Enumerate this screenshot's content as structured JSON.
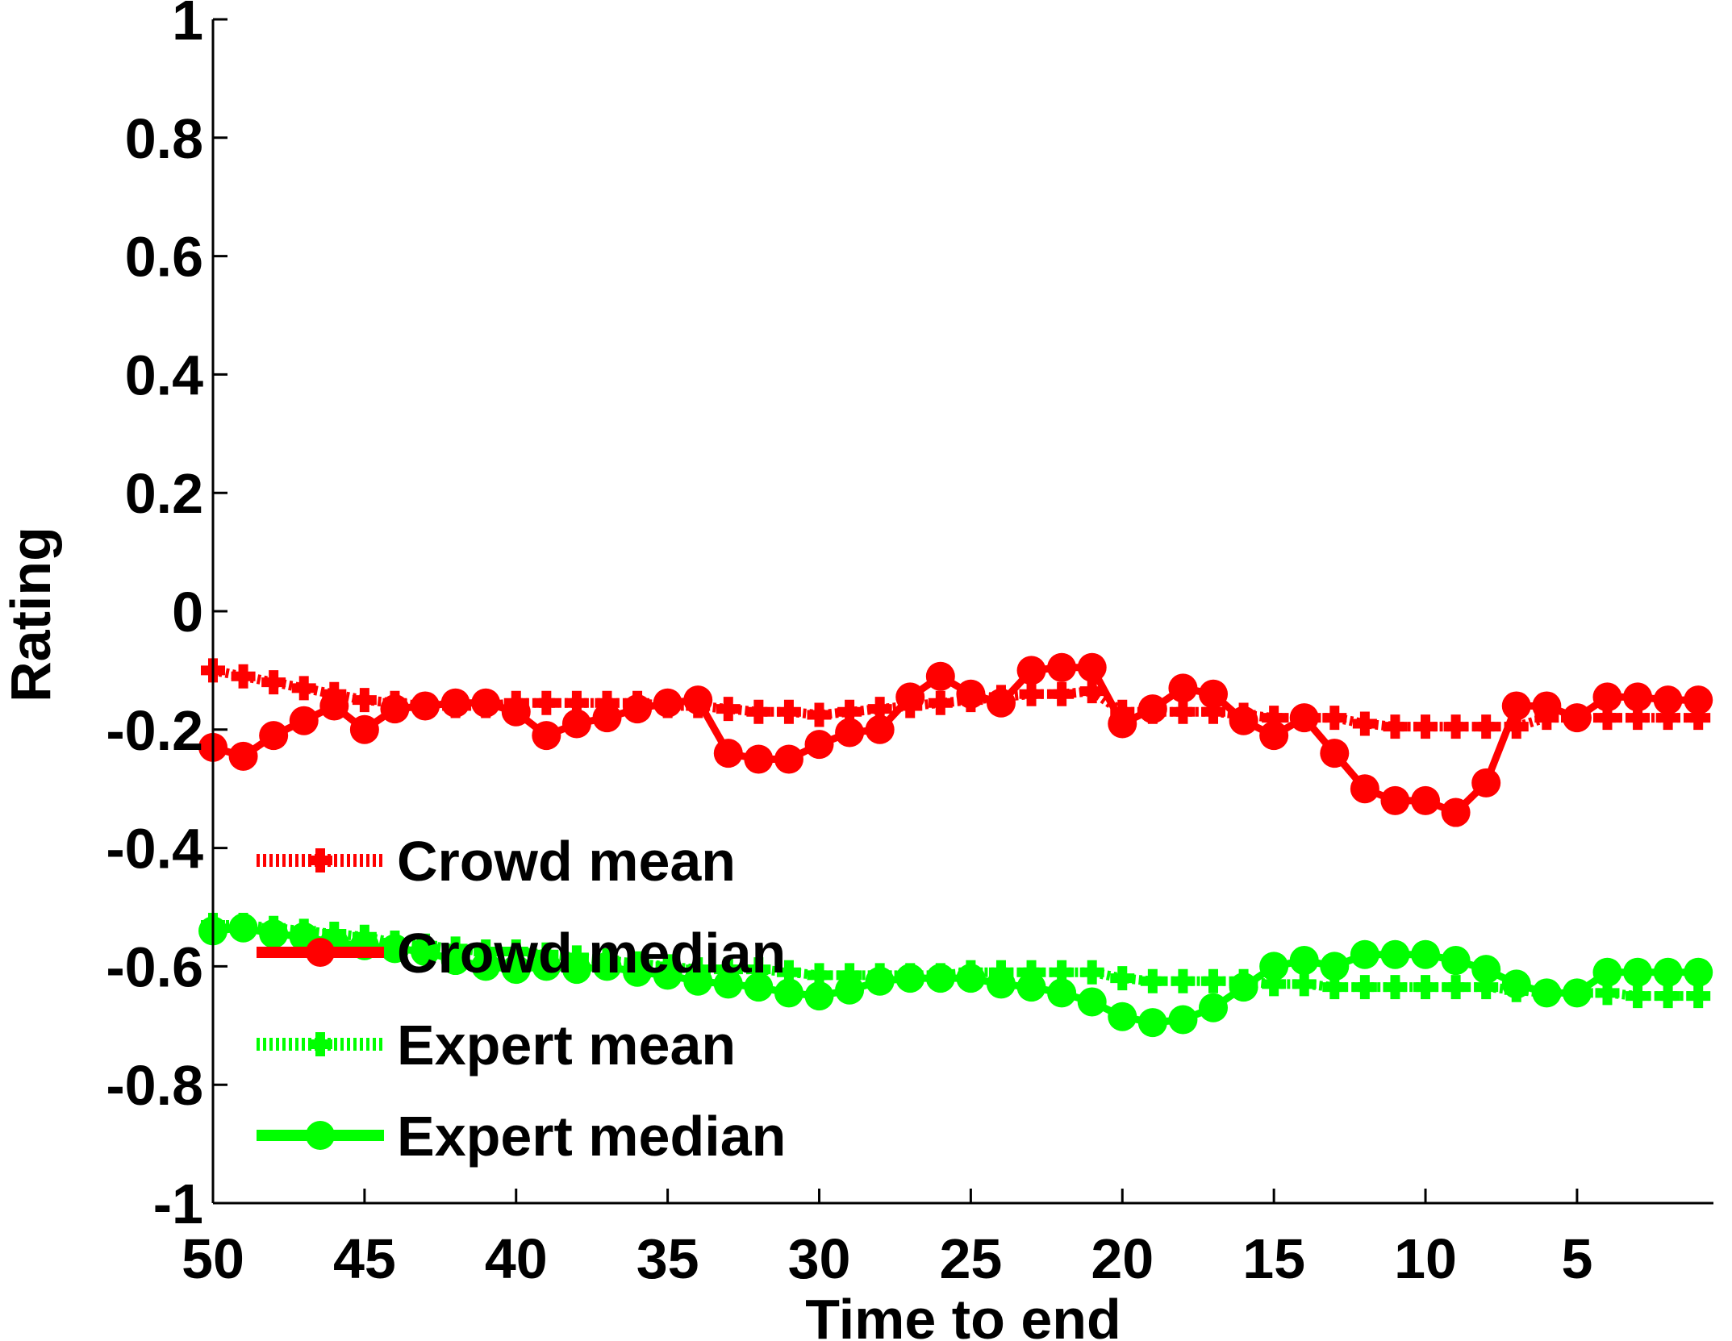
{
  "chart_data": {
    "type": "line",
    "title": "",
    "xlabel": "Time to end",
    "ylabel": "Rating",
    "xlim": [
      50,
      0.5
    ],
    "ylim": [
      -1,
      1
    ],
    "x_reversed": true,
    "xticks": [
      50,
      45,
      40,
      35,
      30,
      25,
      20,
      15,
      10,
      5
    ],
    "xtick_labels": [
      "50",
      "45",
      "40",
      "35",
      "30",
      "25",
      "20",
      "15",
      "10",
      "5"
    ],
    "yticks": [
      1,
      0.8,
      0.6,
      0.4,
      0.2,
      0,
      -0.2,
      -0.4,
      -0.6,
      -0.8,
      -1
    ],
    "ytick_labels": [
      "1",
      "0.8",
      "0.6",
      "0.4",
      "0.2",
      "0",
      "-0.2",
      "-0.4",
      "-0.6",
      "-0.8",
      "-1"
    ],
    "grid": false,
    "legend_position": "bottom-left",
    "x": [
      50,
      49,
      48,
      47,
      46,
      45,
      44,
      43,
      42,
      41,
      40,
      39,
      38,
      37,
      36,
      35,
      34,
      33,
      32,
      31,
      30,
      29,
      28,
      27,
      26,
      25,
      24,
      23,
      22,
      21,
      20,
      19,
      18,
      17,
      16,
      15,
      14,
      13,
      12,
      11,
      10,
      9,
      8,
      7,
      6,
      5,
      4,
      3,
      2,
      1
    ],
    "series": [
      {
        "name": "Crowd mean",
        "color": "#ff0000",
        "linestyle": "dotted",
        "marker": "plus",
        "values": [
          -0.1,
          -0.11,
          -0.12,
          -0.13,
          -0.14,
          -0.15,
          -0.155,
          -0.16,
          -0.16,
          -0.16,
          -0.155,
          -0.155,
          -0.155,
          -0.155,
          -0.155,
          -0.16,
          -0.16,
          -0.165,
          -0.17,
          -0.17,
          -0.175,
          -0.17,
          -0.165,
          -0.16,
          -0.155,
          -0.15,
          -0.145,
          -0.14,
          -0.14,
          -0.135,
          -0.17,
          -0.17,
          -0.17,
          -0.17,
          -0.175,
          -0.18,
          -0.18,
          -0.18,
          -0.19,
          -0.195,
          -0.195,
          -0.195,
          -0.195,
          -0.195,
          -0.18,
          -0.18,
          -0.18,
          -0.18,
          -0.18,
          -0.18
        ]
      },
      {
        "name": "Crowd median",
        "color": "#ff0000",
        "linestyle": "solid",
        "marker": "circle",
        "values": [
          -0.23,
          -0.245,
          -0.21,
          -0.185,
          -0.16,
          -0.2,
          -0.165,
          -0.16,
          -0.155,
          -0.155,
          -0.17,
          -0.21,
          -0.19,
          -0.18,
          -0.165,
          -0.155,
          -0.15,
          -0.24,
          -0.25,
          -0.25,
          -0.225,
          -0.205,
          -0.2,
          -0.145,
          -0.11,
          -0.14,
          -0.155,
          -0.1,
          -0.095,
          -0.095,
          -0.19,
          -0.165,
          -0.13,
          -0.14,
          -0.185,
          -0.21,
          -0.18,
          -0.24,
          -0.3,
          -0.32,
          -0.32,
          -0.34,
          -0.29,
          -0.16,
          -0.16,
          -0.18,
          -0.145,
          -0.145,
          -0.15,
          -0.15
        ]
      },
      {
        "name": "Expert mean",
        "color": "#00ff00",
        "linestyle": "dotted",
        "marker": "plus",
        "values": [
          -0.53,
          -0.53,
          -0.535,
          -0.54,
          -0.545,
          -0.55,
          -0.56,
          -0.565,
          -0.57,
          -0.575,
          -0.575,
          -0.58,
          -0.585,
          -0.59,
          -0.595,
          -0.6,
          -0.605,
          -0.605,
          -0.605,
          -0.61,
          -0.615,
          -0.615,
          -0.615,
          -0.615,
          -0.615,
          -0.61,
          -0.61,
          -0.61,
          -0.61,
          -0.61,
          -0.62,
          -0.625,
          -0.625,
          -0.625,
          -0.625,
          -0.63,
          -0.63,
          -0.635,
          -0.635,
          -0.635,
          -0.635,
          -0.635,
          -0.635,
          -0.64,
          -0.645,
          -0.645,
          -0.645,
          -0.65,
          -0.65,
          -0.65
        ]
      },
      {
        "name": "Expert median",
        "color": "#00ff00",
        "linestyle": "solid",
        "marker": "circle",
        "values": [
          -0.54,
          -0.535,
          -0.545,
          -0.55,
          -0.56,
          -0.565,
          -0.57,
          -0.575,
          -0.59,
          -0.6,
          -0.605,
          -0.6,
          -0.605,
          -0.6,
          -0.61,
          -0.615,
          -0.625,
          -0.63,
          -0.635,
          -0.645,
          -0.65,
          -0.64,
          -0.625,
          -0.62,
          -0.62,
          -0.62,
          -0.63,
          -0.635,
          -0.645,
          -0.66,
          -0.685,
          -0.695,
          -0.69,
          -0.67,
          -0.635,
          -0.6,
          -0.59,
          -0.6,
          -0.58,
          -0.58,
          -0.58,
          -0.59,
          -0.605,
          -0.63,
          -0.645,
          -0.645,
          -0.61,
          -0.61,
          -0.61,
          -0.61
        ]
      }
    ]
  }
}
